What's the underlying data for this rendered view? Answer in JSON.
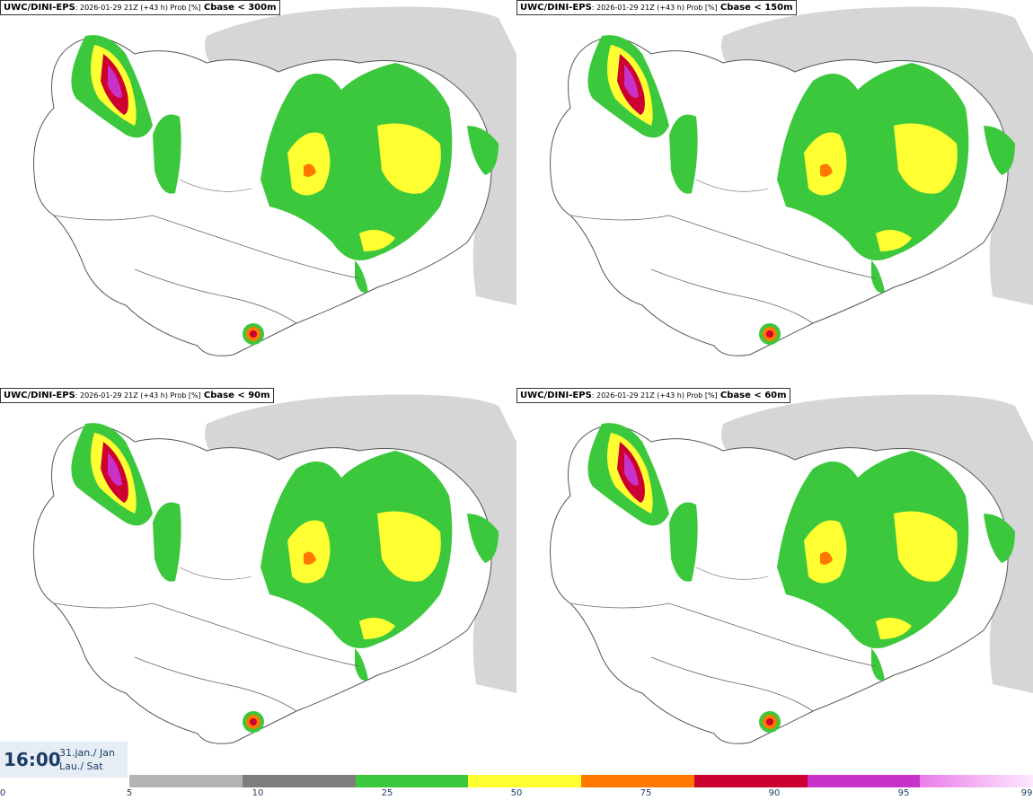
{
  "panels": [
    {
      "model": "UWC/DINI-EPS",
      "run": ": 2026-01-29 21Z (+43 h) Prob [%]",
      "var": "Cbase < 300m"
    },
    {
      "model": "UWC/DINI-EPS",
      "run": ": 2026-01-29 21Z (+43 h) Prob [%]",
      "var": "Cbase < 150m"
    },
    {
      "model": "UWC/DINI-EPS",
      "run": ": 2026-01-29 21Z (+43 h) Prob [%]",
      "var": "Cbase < 90m"
    },
    {
      "model": "UWC/DINI-EPS",
      "run": ": 2026-01-29 21Z (+43 h) Prob [%]",
      "var": "Cbase < 60m"
    }
  ],
  "valid": {
    "time": "16:00",
    "date_line1": "31.jan./ Jan",
    "date_line2": "Lau./ Sat"
  },
  "legend": {
    "ticks": [
      "0",
      "5",
      "10",
      "25",
      "50",
      "75",
      "90",
      "95",
      "99"
    ],
    "colors": [
      "#b4b4b4",
      "#7d7d7d",
      "#3cc83c",
      "#ffff32",
      "#ff7800",
      "#cd0032",
      "#c832c8",
      "#ffc8ff"
    ]
  }
}
